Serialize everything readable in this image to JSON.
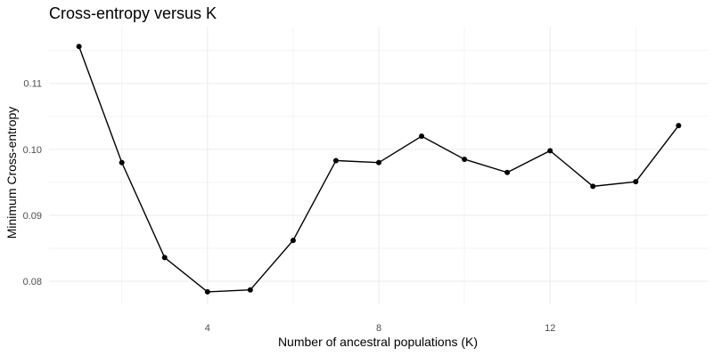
{
  "chart_data": {
    "type": "line",
    "title": "Cross-entropy versus K",
    "xlabel": "Number of ancestral populations (K)",
    "ylabel": "Minimum Cross-entropy",
    "x": [
      1,
      2,
      3,
      4,
      5,
      6,
      7,
      8,
      9,
      10,
      11,
      12,
      13,
      14,
      15
    ],
    "series": [
      {
        "values": [
          0.1156,
          0.098,
          0.0836,
          0.0784,
          0.0787,
          0.0862,
          0.0983,
          0.098,
          0.102,
          0.0985,
          0.0965,
          0.0998,
          0.0944,
          0.0951,
          0.1036
        ]
      }
    ],
    "xlim": [
      0.3,
      15.7
    ],
    "ylim": [
      0.0765,
      0.1186
    ],
    "x_ticks": [
      4,
      8,
      12
    ],
    "y_ticks": [
      0.08,
      0.09,
      0.1,
      0.11
    ],
    "y_tick_labels": [
      "0.08",
      "0.09",
      "0.10",
      "0.11"
    ],
    "grid": true,
    "legend": "none",
    "color": "#000000"
  }
}
